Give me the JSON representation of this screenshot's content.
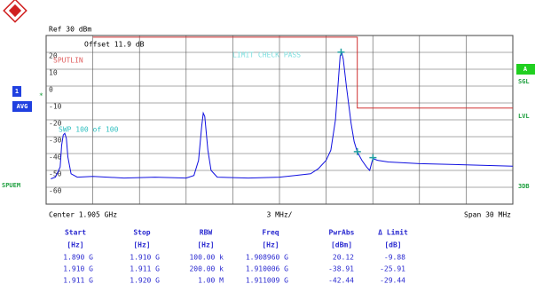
{
  "header": {
    "ref": "Ref  30 dBm",
    "offset": "Offset  11.9 dB"
  },
  "side": {
    "trace": "1",
    "mode": "AVG",
    "star": "*",
    "left": "SPUEM",
    "a": "A",
    "sgl": "SGL",
    "lvl": "LVL",
    "db3": "3DB"
  },
  "chart_data": {
    "type": "line",
    "annotations": [
      "SPUTLIN",
      "LIMIT CHECK   PASS",
      "SWP   100 of   100"
    ],
    "center": "Center 1.905 GHz",
    "per_div": "3 MHz/",
    "span": "Span 30 MHz",
    "xlim": [
      1.89,
      1.92
    ],
    "ylim": [
      -70,
      30
    ],
    "yticks": [
      20,
      10,
      0,
      -10,
      -20,
      -30,
      -40,
      -50,
      -60
    ],
    "xgrid": [
      1.89,
      1.893,
      1.896,
      1.899,
      1.902,
      1.905,
      1.908,
      1.911,
      1.914,
      1.917,
      1.92
    ],
    "ygrid": [
      30,
      20,
      10,
      0,
      -10,
      -20,
      -30,
      -40,
      -50,
      -60,
      -70
    ],
    "grid": true,
    "series": [
      {
        "color": "#1010e0",
        "x": [
          1.8903,
          1.8906,
          1.8909,
          1.891,
          1.8911,
          1.8912,
          1.8913,
          1.8914,
          1.8916,
          1.892,
          1.893,
          1.895,
          1.897,
          1.899,
          1.8995,
          1.8998,
          1.9,
          1.9001,
          1.9002,
          1.9004,
          1.9006,
          1.901,
          1.903,
          1.905,
          1.906,
          1.907,
          1.9075,
          1.908,
          1.9083,
          1.9086,
          1.9088,
          1.9089,
          1.909,
          1.9091,
          1.9093,
          1.9096,
          1.9098,
          1.91,
          1.9103,
          1.9106,
          1.9108,
          1.911,
          1.9113,
          1.912,
          1.914,
          1.916,
          1.918,
          1.92
        ],
        "values": [
          -55,
          -54,
          -48,
          -35,
          -29,
          -28,
          -31,
          -42,
          -52,
          -54,
          -53.5,
          -54.5,
          -54,
          -54.5,
          -53,
          -44,
          -24,
          -16,
          -18,
          -38,
          -50,
          -54,
          -54.5,
          -54,
          -53,
          -52,
          -49,
          -44,
          -38,
          -20,
          5,
          18,
          20,
          16,
          0,
          -22,
          -33,
          -39,
          -44,
          -48,
          -50,
          -43,
          -44,
          -45,
          -46,
          -46.5,
          -47,
          -47.5
        ]
      },
      {
        "color": "#d03030",
        "x": [
          1.893,
          1.91,
          1.91,
          1.92
        ],
        "values": [
          29,
          29,
          -13,
          -13
        ]
      }
    ],
    "markers": {
      "color": "#20a0a0",
      "x": [
        1.90896,
        1.910006,
        1.911009
      ],
      "values": [
        20.12,
        -38.91,
        -42.44
      ]
    }
  },
  "table": {
    "header": [
      "Start",
      "Stop",
      "RBW",
      "Freq",
      "PwrAbs",
      "Δ Limit"
    ],
    "units": [
      "[Hz]",
      "[Hz]",
      "[Hz]",
      "[Hz]",
      "[dBm]",
      "[dB]"
    ],
    "rows": [
      [
        "1.890 G",
        "1.910 G",
        "100.00 k",
        "1.908960 G",
        "20.12",
        "-9.88"
      ],
      [
        "1.910 G",
        "1.911 G",
        "200.00 k",
        "1.910006 G",
        "-38.91",
        "-25.91"
      ],
      [
        "1.911 G",
        "1.920 G",
        "1.00 M",
        "1.911009 G",
        "-42.44",
        "-29.44"
      ]
    ]
  }
}
